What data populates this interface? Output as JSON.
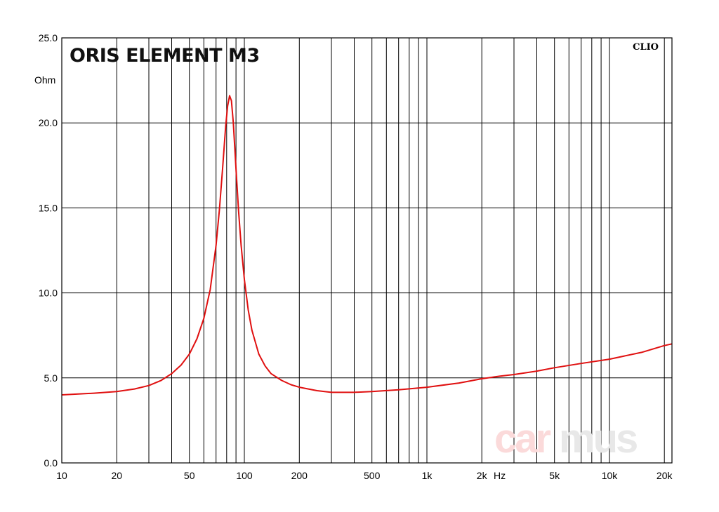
{
  "chart_data": {
    "type": "line",
    "title": "ORIS ELEMENT M3",
    "xlabel": "Hz",
    "ylabel": "Ohm",
    "xscale": "log",
    "xlim": [
      10,
      22000
    ],
    "ylim": [
      0,
      25
    ],
    "grid": true,
    "x_tick_labels": [
      {
        "value": 10,
        "label": "10"
      },
      {
        "value": 20,
        "label": "20"
      },
      {
        "value": 50,
        "label": "50"
      },
      {
        "value": 100,
        "label": "100"
      },
      {
        "value": 200,
        "label": "200"
      },
      {
        "value": 500,
        "label": "500"
      },
      {
        "value": 1000,
        "label": "1k"
      },
      {
        "value": 2000,
        "label": "2k"
      },
      {
        "value": 5000,
        "label": "5k"
      },
      {
        "value": 10000,
        "label": "10k"
      },
      {
        "value": 20000,
        "label": "20k"
      }
    ],
    "y_tick_labels": [
      {
        "value": 0,
        "label": "0.0"
      },
      {
        "value": 5,
        "label": "5.0"
      },
      {
        "value": 10,
        "label": "10.0"
      },
      {
        "value": 15,
        "label": "15.0"
      },
      {
        "value": 20,
        "label": "20.0"
      },
      {
        "value": 25,
        "label": "25.0"
      }
    ],
    "series": [
      {
        "color": "#e01010",
        "x": [
          10,
          15,
          20,
          25,
          30,
          35,
          40,
          45,
          50,
          55,
          60,
          65,
          70,
          73,
          76,
          79,
          81,
          83,
          85,
          87,
          90,
          93,
          96,
          100,
          105,
          110,
          120,
          130,
          140,
          160,
          180,
          200,
          250,
          300,
          400,
          500,
          700,
          1000,
          1500,
          2000,
          2500,
          3000,
          4000,
          5000,
          7000,
          10000,
          15000,
          20000,
          22000
        ],
        "y": [
          4.0,
          4.1,
          4.2,
          4.35,
          4.55,
          4.85,
          5.25,
          5.75,
          6.4,
          7.3,
          8.5,
          10.2,
          12.8,
          14.9,
          17.3,
          19.8,
          21.0,
          21.6,
          21.3,
          20.0,
          17.3,
          14.8,
          12.8,
          10.8,
          9.0,
          7.8,
          6.4,
          5.7,
          5.25,
          4.85,
          4.6,
          4.45,
          4.25,
          4.15,
          4.15,
          4.2,
          4.3,
          4.45,
          4.7,
          4.95,
          5.1,
          5.2,
          5.4,
          5.6,
          5.85,
          6.1,
          6.5,
          6.9,
          7.0
        ]
      }
    ],
    "annotations": [
      "CLIO"
    ],
    "watermark": "carmus"
  }
}
